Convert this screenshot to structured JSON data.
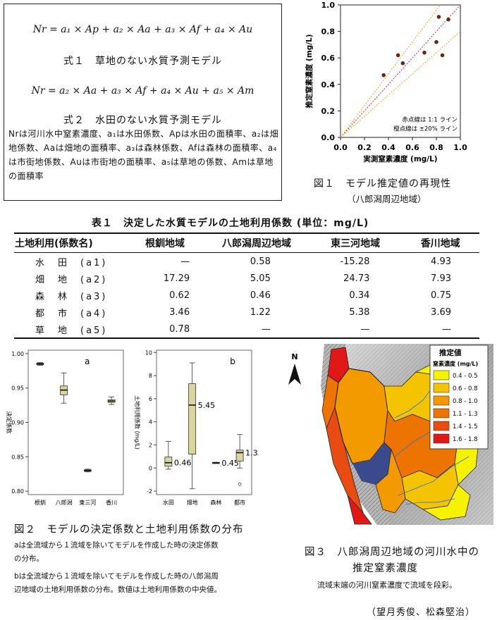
{
  "formula_box": {
    "eq1": "Nr = a₁ × Ap + a₂ × Aa + a₃ × Af + a₄ × Au",
    "caption1": "式１　草地のない水質予測モデル",
    "eq2": "Nr = a₂ × Aa + a₃ × Af + a₄ × Au + a₅ × Am",
    "caption2": "式２　水田のない水質予測モデル",
    "description": "Nrは河川水中窒素濃度、a₁は水田係数、Apは水田の面積率、a₂は畑地係数、Aaは畑地の面積率、a₃は森林係数、Afは森林の面積率、a₄は市街地係数、Auは市街地の面積率、a₅は草地の係数、Amは草地の面積率"
  },
  "figure1": {
    "caption": "図１　モデル推定値の再現性",
    "subcaption": "（八郎潟周辺地域）",
    "chart_data": {
      "type": "scatter",
      "title": "",
      "xlabel": "実測窒素濃度 (mg/L)",
      "ylabel": "推定窒素濃度 (mg/L)",
      "xlim": [
        0,
        1.0
      ],
      "ylim": [
        0,
        1.0
      ],
      "xticks": [
        "0.0",
        "0.2",
        "0.4",
        "0.6",
        "0.8",
        "1.0"
      ],
      "yticks": [
        "0.0",
        "0.2",
        "0.4",
        "0.6",
        "0.8",
        "1.0"
      ],
      "points": [
        [
          0.36,
          0.47
        ],
        [
          0.48,
          0.62
        ],
        [
          0.52,
          0.56
        ],
        [
          0.7,
          0.64
        ],
        [
          0.8,
          0.72
        ],
        [
          0.82,
          0.91
        ],
        [
          0.85,
          0.62
        ],
        [
          0.9,
          0.89
        ]
      ],
      "legend": [
        "赤点線は 1:1 ライン",
        "橙点線は ±20% ライン"
      ],
      "colors": {
        "points": "#6b2418",
        "line_1to1": "#e02020",
        "line_20": "#f0a020"
      }
    }
  },
  "table1": {
    "title": "表１　決定した水質モデルの土地利用係数 (単位：mg/L)",
    "headers": [
      "土地利用(係数名)",
      "根釧地域",
      "八郎潟周辺地域",
      "東三河地域",
      "香川地域"
    ],
    "rows": [
      [
        "水　田　(a1)",
        "—",
        "0.58",
        "-15.28",
        "4.93"
      ],
      [
        "畑　地　(a2)",
        "17.29",
        "5.05",
        "24.73",
        "7.93"
      ],
      [
        "森　林　(a3)",
        "0.62",
        "0.46",
        "0.34",
        "0.75"
      ],
      [
        "都　市　(a4)",
        "3.46",
        "1.22",
        "5.38",
        "3.69"
      ],
      [
        "草　地　(a5)",
        "0.78",
        "—",
        "—",
        "—"
      ]
    ]
  },
  "figure2": {
    "caption": "図２　モデルの決定係数と土地利用係数の分布",
    "note_a1": "aは全流域から１流域を除いてモデルを作成した時の決定係数",
    "note_a2": "の分布。",
    "note_b1": "bは全流域から１流域を除いてモデルを作成した時の八郎潟周",
    "note_b2": "辺地域の土地利用係数の分布。数値は土地利用係数の中央値。",
    "chart_data": [
      {
        "type": "box",
        "panel": "a",
        "ylabel": "決定係数",
        "ylim": [
          0.795,
          1.005
        ],
        "yticks": [
          "0.80",
          "0.85",
          "0.90",
          "0.95",
          "1.00"
        ],
        "categories": [
          "根釧",
          "八郎潟",
          "東三河",
          "香川"
        ],
        "boxes": [
          {
            "min": 0.983,
            "q1": 0.984,
            "median": 0.985,
            "q3": 0.986,
            "max": 0.987
          },
          {
            "min": 0.928,
            "q1": 0.94,
            "median": 0.947,
            "q3": 0.953,
            "max": 0.972
          },
          {
            "min": 0.828,
            "q1": 0.829,
            "median": 0.83,
            "q3": 0.831,
            "max": 0.832
          },
          {
            "min": 0.926,
            "q1": 0.929,
            "median": 0.931,
            "q3": 0.933,
            "max": 0.937
          }
        ]
      },
      {
        "type": "box",
        "panel": "b",
        "ylabel": "土地利用係数 (mg/L)",
        "ylim": [
          -2.3,
          10.2
        ],
        "yticks": [
          "-2",
          "0",
          "2",
          "4",
          "6",
          "8",
          "10"
        ],
        "categories": [
          "水田",
          "畑地",
          "森林",
          "都市"
        ],
        "boxes": [
          {
            "min": -0.1,
            "q1": 0.15,
            "median": 0.46,
            "q3": 0.95,
            "max": 2.3
          },
          {
            "min": -1.8,
            "q1": 1.2,
            "median": 5.45,
            "q3": 7.3,
            "max": 9.1
          },
          {
            "min": 0.4,
            "q1": 0.43,
            "median": 0.45,
            "q3": 0.48,
            "max": 0.5
          },
          {
            "min": 0.0,
            "q1": 0.6,
            "median": 1.33,
            "q3": 1.55,
            "max": 2.9
          }
        ],
        "median_labels": [
          "0.46",
          "5.45",
          "0.45",
          "1.33"
        ],
        "outlier": {
          "category": "都市",
          "value": -1.4
        }
      }
    ]
  },
  "figure3": {
    "caption1": "図３　八郎潟周辺地域の河川水中の",
    "caption2": "推定窒素濃度",
    "note": "流域末端の河川窒素濃度で流域を段彩。",
    "north": "N",
    "legend_title": "推定値",
    "legend_subtitle": "窒素濃度 (mg/L)",
    "legend_items": [
      {
        "label": "0.4 - 0.5",
        "color": "#f6f200"
      },
      {
        "label": "0.6 - 0.8",
        "color": "#f5c400"
      },
      {
        "label": "0.8 - 1.0",
        "color": "#f39a00"
      },
      {
        "label": "1.1 - 1.3",
        "color": "#ee7400"
      },
      {
        "label": "1.4 - 1.5",
        "color": "#e84c10"
      },
      {
        "label": "1.6 - 1.8",
        "color": "#e01818"
      }
    ]
  },
  "author": "（望月秀俊、松森堅治）"
}
